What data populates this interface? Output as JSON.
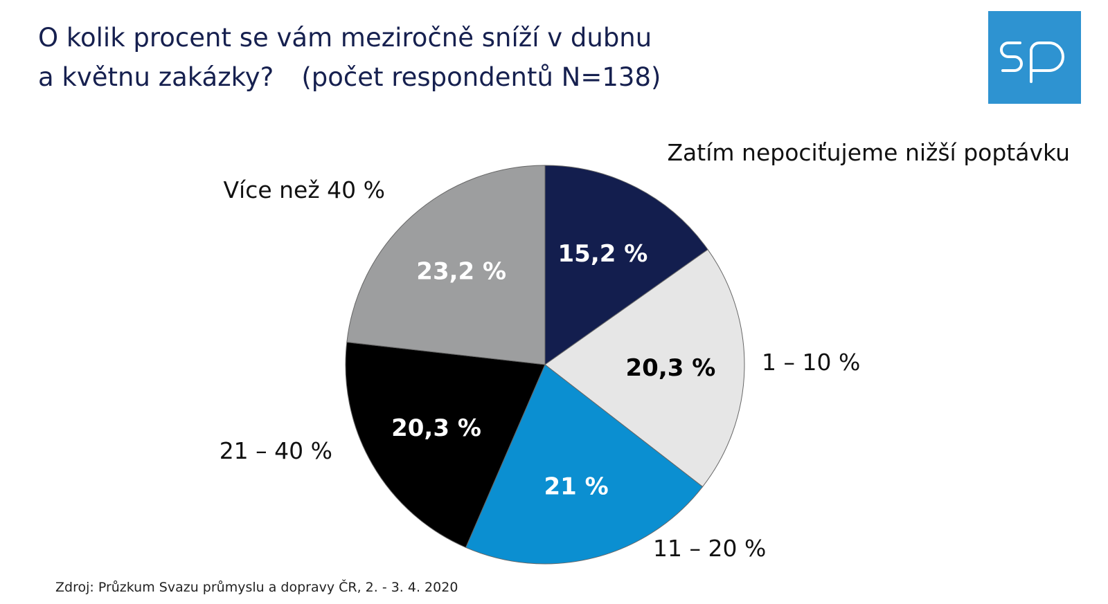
{
  "header": {
    "title_line1": "O kolik procent se vám meziročně sníží v dubnu",
    "title_line2": "a květnu zakázky?",
    "title_note": "(počet respondentů N=138)"
  },
  "logo": {
    "text": "sp",
    "background": "#2e93d1"
  },
  "chart_data": {
    "type": "pie",
    "slices": [
      {
        "label": "Zatím nepociťujeme nižší poptávku",
        "value": 15.2,
        "value_label": "15,2 %",
        "color": "#131e4e",
        "value_text_color": "#ffffff"
      },
      {
        "label": "1 – 10 %",
        "value": 20.3,
        "value_label": "20,3 %",
        "color": "#e6e6e6",
        "value_text_color": "#000000"
      },
      {
        "label": "11 – 20 %",
        "value": 21,
        "value_label": "21 %",
        "color": "#0b8fd1",
        "value_text_color": "#ffffff"
      },
      {
        "label": "21 – 40 %",
        "value": 20.3,
        "value_label": "20,3 %",
        "color": "#000000",
        "value_text_color": "#ffffff"
      },
      {
        "label": "Více než 40 %",
        "value": 23.2,
        "value_label": "23,2 %",
        "color": "#9d9e9f",
        "value_text_color": "#ffffff"
      }
    ],
    "start_angle": "12 o'clock",
    "direction": "clockwise"
  },
  "footer": {
    "source": "Zdroj: Průzkum Svazu průmyslu a dopravy ČR, 2. - 3. 4. 2020"
  }
}
